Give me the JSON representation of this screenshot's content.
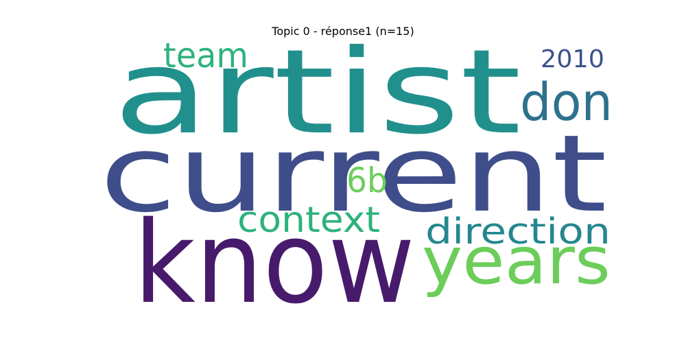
{
  "chart_data": {
    "type": "wordcloud",
    "title": "Topic 0 - réponse1 (n=15)",
    "words": [
      {
        "text": "artist",
        "weight": 1.0,
        "color": "#21908d"
      },
      {
        "text": "current",
        "weight": 0.97,
        "color": "#3f4e8a"
      },
      {
        "text": "know",
        "weight": 0.9,
        "color": "#481a6c"
      },
      {
        "text": "years",
        "weight": 0.57,
        "color": "#6ccd5a"
      },
      {
        "text": "don",
        "weight": 0.45,
        "color": "#2d718e"
      },
      {
        "text": "direction",
        "weight": 0.38,
        "color": "#24878e"
      },
      {
        "text": "context",
        "weight": 0.37,
        "color": "#2db27d"
      },
      {
        "text": "6b",
        "weight": 0.36,
        "color": "#6ccd5a"
      },
      {
        "text": "team",
        "weight": 0.36,
        "color": "#2db27d"
      },
      {
        "text": "2010",
        "weight": 0.28,
        "color": "#3b528b"
      }
    ]
  }
}
